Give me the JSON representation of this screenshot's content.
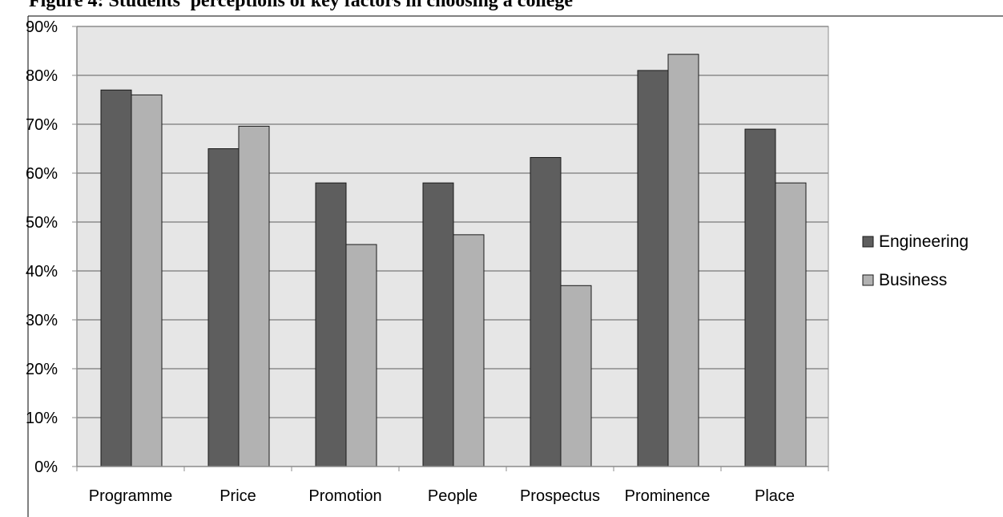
{
  "chart_data": {
    "type": "bar",
    "title": "Figure 4: Students' perceptions of key factors in choosing a college",
    "categories": [
      "Programme",
      "Price",
      "Promotion",
      "People",
      "Prospectus",
      "Prominence",
      "Place"
    ],
    "series": [
      {
        "name": "Engineering",
        "color": "#5e5e5e",
        "values": [
          77,
          65,
          58,
          58,
          63.2,
          81,
          69
        ]
      },
      {
        "name": "Business",
        "color": "#b2b2b2",
        "values": [
          76,
          69.6,
          45.4,
          47.4,
          37,
          84.3,
          58
        ]
      }
    ],
    "ylim": [
      0,
      90
    ],
    "ytick_step": 10,
    "ytick_format": "percent",
    "xlabel": "",
    "ylabel": "",
    "grid": true,
    "legend_position": "right",
    "plot_background": "#e6e6e6"
  }
}
